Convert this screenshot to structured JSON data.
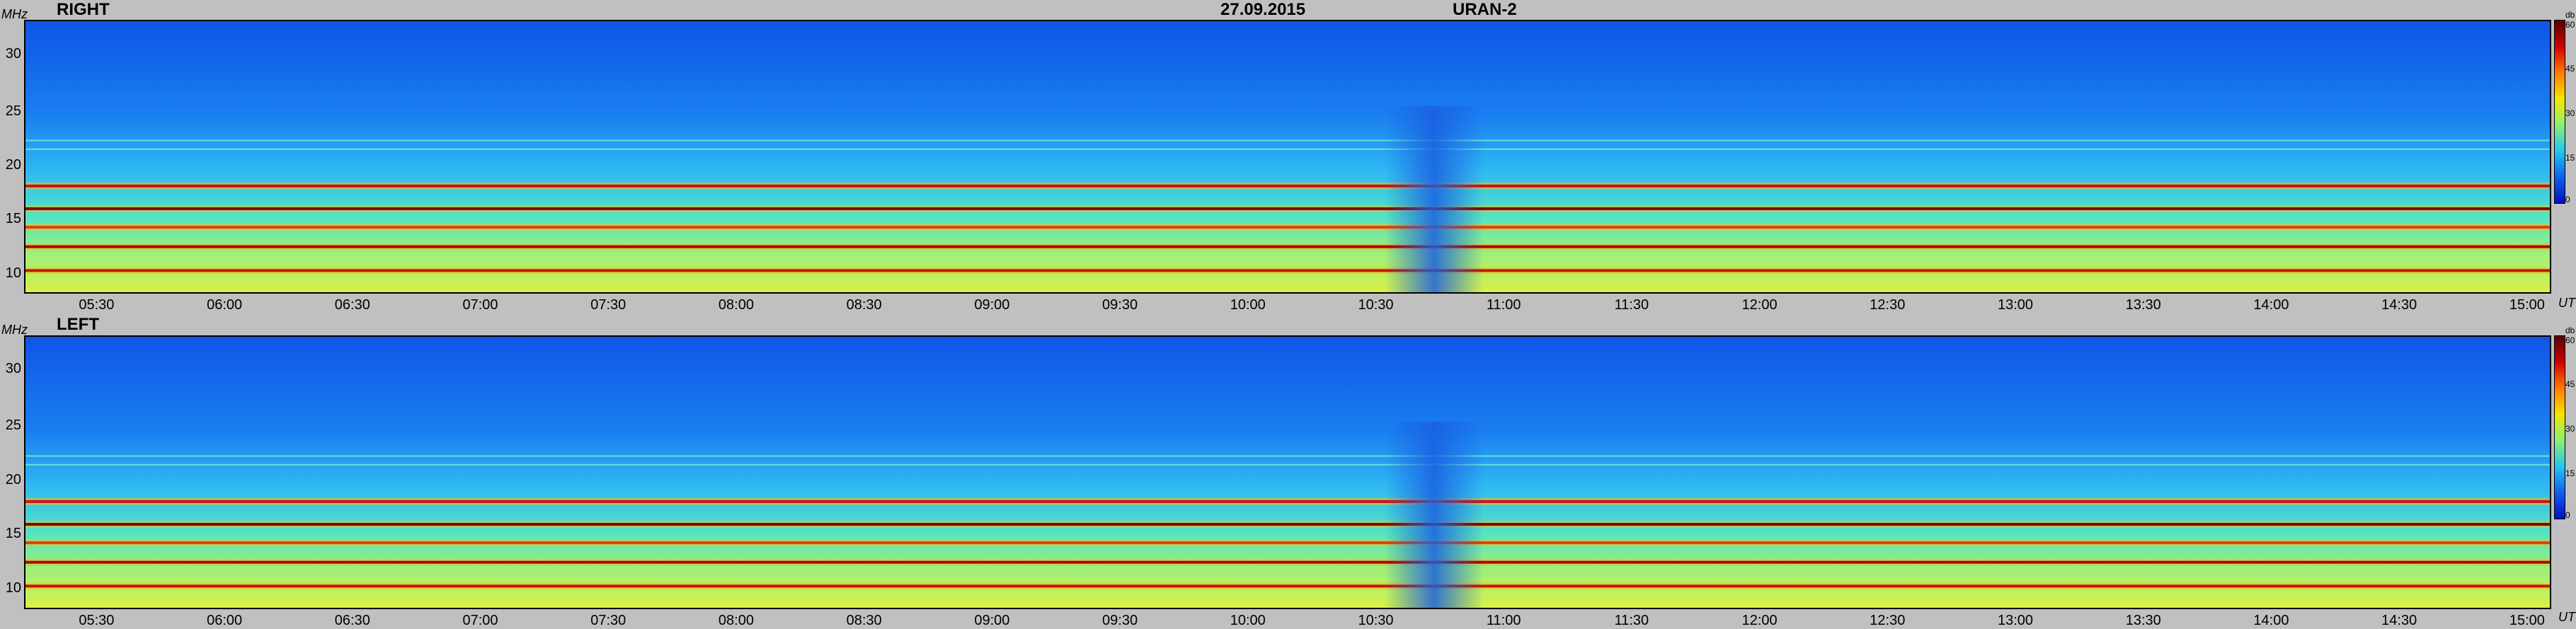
{
  "header": {
    "date": "27.09.2015",
    "instrument": "URAN-2"
  },
  "y_unit": "MHz",
  "x_unit": "UT",
  "colorbar": {
    "unit": "db",
    "ticks": [
      "60",
      "45",
      "30",
      "15",
      "0"
    ],
    "range": [
      0,
      60
    ]
  },
  "chart_data": [
    {
      "type": "heatmap",
      "title": "RIGHT",
      "xlabel": "UT",
      "ylabel": "MHz",
      "x_ticks": [
        "05:30",
        "06:00",
        "06:30",
        "07:00",
        "07:30",
        "08:00",
        "08:30",
        "09:00",
        "09:30",
        "10:00",
        "10:30",
        "11:00",
        "11:30",
        "12:00",
        "12:30",
        "13:00",
        "13:30",
        "14:00",
        "14:30",
        "15:00"
      ],
      "y_ticks": [
        "30",
        "25",
        "20",
        "15",
        "10"
      ],
      "xlim": [
        "05:13",
        "15:05"
      ],
      "ylim": [
        8,
        33
      ],
      "colorscale": "jet",
      "zlim": [
        0,
        60
      ],
      "features": {
        "strong_bands_MHz": [
          17.8,
          15.7,
          14.0,
          12.2,
          10.0
        ],
        "weak_bands_MHz": [
          21.2,
          22.0
        ],
        "low_intensity_time": "10:45"
      }
    },
    {
      "type": "heatmap",
      "title": "LEFT",
      "xlabel": "UT",
      "ylabel": "MHz",
      "x_ticks": [
        "05:30",
        "06:00",
        "06:30",
        "07:00",
        "07:30",
        "08:00",
        "08:30",
        "09:00",
        "09:30",
        "10:00",
        "10:30",
        "11:00",
        "11:30",
        "12:00",
        "12:30",
        "13:00",
        "13:30",
        "14:00",
        "14:30",
        "15:00"
      ],
      "y_ticks": [
        "30",
        "25",
        "20",
        "15",
        "10"
      ],
      "xlim": [
        "05:13",
        "15:05"
      ],
      "ylim": [
        8,
        33
      ],
      "colorscale": "jet",
      "zlim": [
        0,
        60
      ],
      "features": {
        "strong_bands_MHz": [
          17.8,
          15.7,
          14.0,
          12.2,
          10.0
        ],
        "weak_bands_MHz": [
          21.2,
          22.0
        ],
        "low_intensity_time": "10:45"
      }
    }
  ]
}
